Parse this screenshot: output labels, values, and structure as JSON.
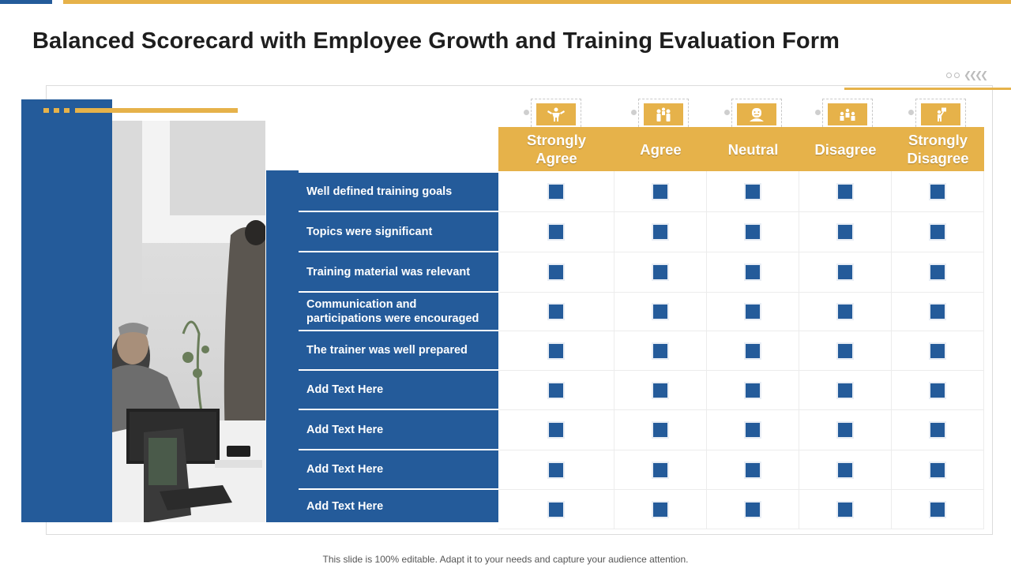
{
  "slide": {
    "title": "Balanced Scorecard with Employee Growth and Training Evaluation Form",
    "footer": "This slide is 100% editable. Adapt it to your needs and capture your audience attention."
  },
  "colors": {
    "primary_blue": "#245b9a",
    "accent_gold": "#e6b24a",
    "text_dark": "#1e1e1e"
  },
  "photo": {
    "description_icon": "office-meeting-photo"
  },
  "columns": [
    {
      "label": "Strongly Agree",
      "line1": "Strongly",
      "line2": "Agree",
      "icon": "strength-flex-icon"
    },
    {
      "label": "Agree",
      "line1": "Agree",
      "line2": "",
      "icon": "team-people-icon"
    },
    {
      "label": "Neutral",
      "line1": "Neutral",
      "line2": "",
      "icon": "neutral-face-icon"
    },
    {
      "label": "Disagree",
      "line1": "Disagree",
      "line2": "",
      "icon": "group-disagree-icon"
    },
    {
      "label": "Strongly Disagree",
      "line1": "Strongly",
      "line2": "Disagree",
      "icon": "strongly-disagree-icon"
    }
  ],
  "rows": [
    {
      "label": "Well defined training goals"
    },
    {
      "label": "Topics were significant"
    },
    {
      "label": "Training material was relevant"
    },
    {
      "label": "Communication and participations were encouraged",
      "line1": "Communication and",
      "line2": "participations were encouraged"
    },
    {
      "label": "The trainer was well prepared"
    },
    {
      "label": "Add Text Here"
    },
    {
      "label": "Add Text Here"
    },
    {
      "label": "Add Text Here"
    },
    {
      "label": "Add Text Here"
    }
  ]
}
